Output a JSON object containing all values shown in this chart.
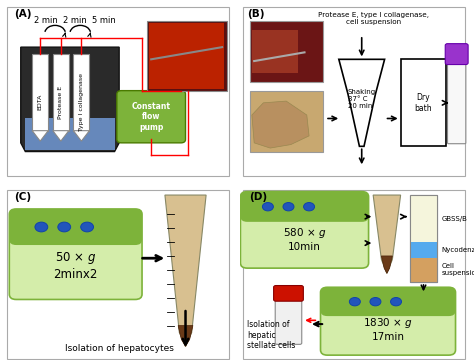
{
  "panel_A_label": "(A)",
  "panel_B_label": "(B)",
  "panel_C_label": "(C)",
  "panel_D_label": "(D)",
  "panel_A_timing": "2 min  2 min  5 min",
  "panel_A_tube_labels": [
    "EDTA",
    "Protease E",
    "Type I collagenase"
  ],
  "panel_A_pump": "Constant\nflow\npump",
  "panel_B_text1": "Protease E, type I collagenase,\ncell suspension",
  "panel_B_shaking": "Shaking\n37° C\n20 min",
  "panel_B_dry": "Dry\nbath",
  "panel_C_centrifuge": "50 × $g$\n2minx2",
  "panel_C_bottom_label": "Isolation of hepatocytes",
  "panel_D_centrifuge1": "580 × $g$\n10min",
  "panel_D_centrifuge2": "1830 × $g$\n17min",
  "panel_D_gbss": "GBSS/B",
  "panel_D_nycodenz": "Nycodenz",
  "panel_D_cell_suspension": "Cell\nsuspension",
  "panel_D_isolation": "Isolation of\nhepatic\nstellate cells",
  "bg_color": "#ffffff",
  "green_dark": "#7db33a",
  "green_light": "#d4edaa",
  "blue_liquid": "#6688bb",
  "bucket_dark": "#333333",
  "bucket_gray": "#555555"
}
